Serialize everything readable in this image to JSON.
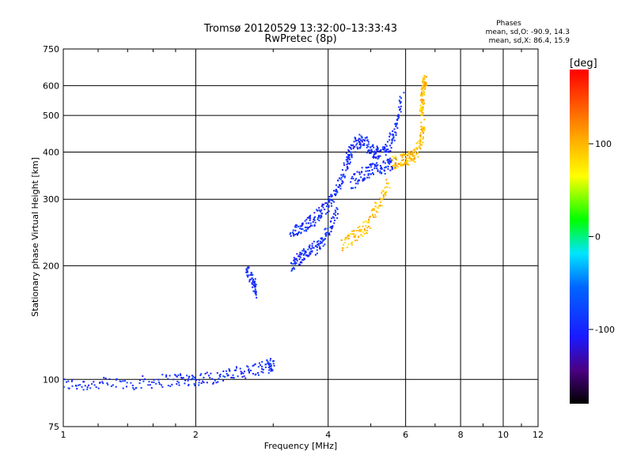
{
  "chart_data": {
    "type": "scatter",
    "title": "Tromsø 20120529 13:32:00–13:33:43",
    "subtitle": "RwPretec (8p)",
    "xlabel": "Frequency [MHz]",
    "ylabel": "Stationary phase Virtual Height [km]",
    "x_scale": "log",
    "y_scale": "log",
    "xlim": [
      1,
      12
    ],
    "ylim": [
      75,
      750
    ],
    "x_ticks": [
      1,
      2,
      4,
      6,
      8,
      10,
      12
    ],
    "y_ticks": [
      75,
      100,
      200,
      300,
      400,
      500,
      600,
      750
    ],
    "grid": true,
    "phases_box": {
      "heading": "Phases",
      "line1": "mean, sd,O: -90.9, 14.3",
      "line2": "mean, sd,X:  86.4, 15.9"
    },
    "colorbar": {
      "label": "[deg]",
      "min": -180,
      "max": 180,
      "ticks": [
        100,
        0,
        -100
      ],
      "tick_labels": [
        "100",
        "0",
        "-100"
      ]
    },
    "series": [
      {
        "mode": "O",
        "trace_segments": [
          {
            "x": [
              1.0,
              1.2,
              1.5,
              1.8,
              2.0,
              2.3,
              2.6,
              2.9,
              3.0
            ],
            "y": [
              97,
              97,
              98,
              100,
              100,
              102,
              105,
              108,
              110
            ]
          },
          {
            "x": [
              3.3,
              3.45,
              3.6,
              3.8,
              4.0,
              4.2
            ],
            "y": [
              200,
              210,
              218,
              225,
              245,
              280
            ]
          },
          {
            "x": [
              3.3,
              3.5,
              3.7,
              3.9,
              4.1,
              4.3,
              4.5
            ],
            "y": [
              240,
              255,
              265,
              280,
              300,
              340,
              400
            ]
          },
          {
            "x": [
              4.4,
              4.6,
              4.8,
              5.0,
              5.2,
              5.5,
              5.7,
              5.9
            ],
            "y": [
              380,
              420,
              430,
              405,
              395,
              415,
              460,
              560
            ]
          },
          {
            "x": [
              4.5,
              4.8,
              5.1,
              5.4,
              5.7
            ],
            "y": [
              330,
              350,
              360,
              365,
              375
            ]
          },
          {
            "x": [
              2.6,
              2.7,
              2.75
            ],
            "y": [
              195,
              180,
              170
            ]
          }
        ],
        "phase_deg": -95
      },
      {
        "mode": "X",
        "trace_segments": [
          {
            "x": [
              4.3,
              4.6,
              4.9,
              5.2,
              5.5
            ],
            "y": [
              225,
              240,
              255,
              290,
              330
            ]
          },
          {
            "x": [
              5.6,
              5.9,
              6.1,
              6.3,
              6.5,
              6.6
            ],
            "y": [
              375,
              380,
              385,
              390,
              430,
              480
            ]
          },
          {
            "x": [
              6.5,
              6.55,
              6.6,
              6.65
            ],
            "y": [
              500,
              550,
              600,
              630
            ]
          }
        ],
        "phase_deg": 95
      }
    ]
  }
}
